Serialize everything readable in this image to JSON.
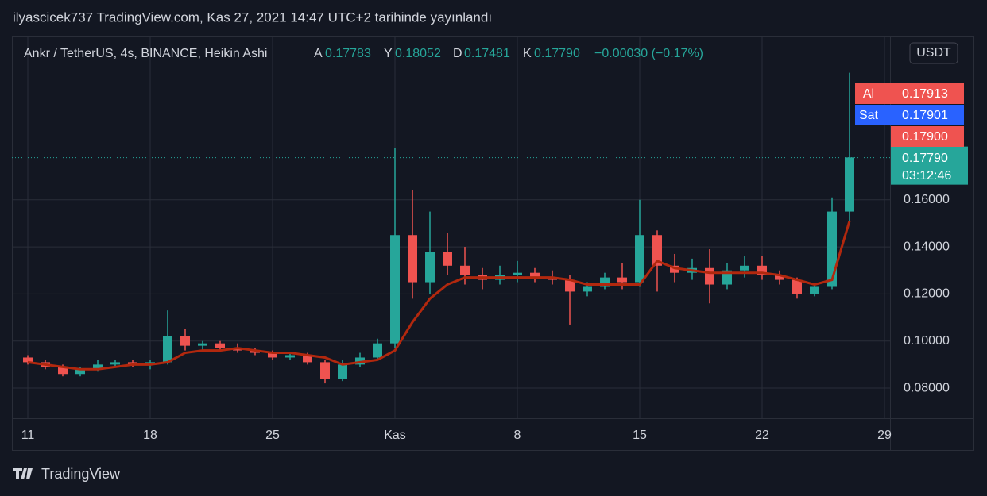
{
  "header": {
    "title": "ilyascicek737 TradingView.com, Kas 27, 2021 14:47 UTC+2 tarihinde yayınlandı"
  },
  "chart_data": {
    "type": "candlestick",
    "symbol": "Ankr / TetherUS, 4s, BINANCE, Heikin Ashi",
    "ohlc_legend": [
      {
        "label": "A",
        "value": "0.17783"
      },
      {
        "label": "Y",
        "value": "0.18052"
      },
      {
        "label": "D",
        "value": "0.17481"
      },
      {
        "label": "K",
        "value": "0.17790"
      }
    ],
    "change": "−0.00030 (−0.17%)",
    "currency": "USDT",
    "up_color": "#26a69a",
    "down_color": "#ef5350",
    "open": [
      0.093,
      0.091,
      0.089,
      0.086,
      0.088,
      0.09,
      0.091,
      0.09,
      0.091,
      0.102,
      0.098,
      0.099,
      0.097,
      0.096,
      0.095,
      0.093,
      0.094,
      0.091,
      0.084,
      0.09,
      0.093,
      0.099,
      0.145,
      0.125,
      0.138,
      0.132,
      0.128,
      0.126,
      0.128,
      0.129,
      0.127,
      0.126,
      0.121,
      0.123,
      0.127,
      0.125,
      0.145,
      0.132,
      0.129,
      0.131,
      0.124,
      0.13,
      0.132,
      0.128,
      0.126,
      0.12,
      0.123,
      0.155
    ],
    "high": [
      0.094,
      0.092,
      0.09,
      0.089,
      0.092,
      0.092,
      0.092,
      0.092,
      0.113,
      0.105,
      0.1,
      0.1,
      0.099,
      0.097,
      0.096,
      0.095,
      0.095,
      0.092,
      0.092,
      0.095,
      0.101,
      0.182,
      0.164,
      0.155,
      0.146,
      0.14,
      0.131,
      0.132,
      0.134,
      0.131,
      0.13,
      0.128,
      0.125,
      0.129,
      0.133,
      0.16,
      0.147,
      0.137,
      0.135,
      0.139,
      0.133,
      0.136,
      0.136,
      0.13,
      0.127,
      0.124,
      0.161,
      0.214
    ],
    "low": [
      0.09,
      0.088,
      0.085,
      0.085,
      0.087,
      0.089,
      0.089,
      0.088,
      0.09,
      0.096,
      0.096,
      0.096,
      0.095,
      0.094,
      0.092,
      0.092,
      0.09,
      0.082,
      0.083,
      0.089,
      0.092,
      0.097,
      0.118,
      0.12,
      0.128,
      0.124,
      0.122,
      0.124,
      0.125,
      0.125,
      0.124,
      0.107,
      0.119,
      0.122,
      0.122,
      0.123,
      0.121,
      0.125,
      0.126,
      0.116,
      0.122,
      0.127,
      0.126,
      0.124,
      0.118,
      0.119,
      0.122,
      0.15
    ],
    "close": [
      0.091,
      0.089,
      0.086,
      0.088,
      0.09,
      0.091,
      0.09,
      0.091,
      0.102,
      0.098,
      0.099,
      0.097,
      0.096,
      0.095,
      0.093,
      0.094,
      0.091,
      0.084,
      0.09,
      0.093,
      0.099,
      0.145,
      0.125,
      0.138,
      0.132,
      0.128,
      0.126,
      0.128,
      0.129,
      0.127,
      0.126,
      0.121,
      0.123,
      0.127,
      0.125,
      0.145,
      0.132,
      0.129,
      0.131,
      0.124,
      0.13,
      0.132,
      0.128,
      0.126,
      0.12,
      0.123,
      0.155,
      0.178
    ],
    "ma": {
      "color": "#b2280e",
      "values": [
        0.091,
        0.09,
        0.089,
        0.088,
        0.088,
        0.089,
        0.09,
        0.09,
        0.091,
        0.095,
        0.096,
        0.096,
        0.097,
        0.096,
        0.095,
        0.095,
        0.094,
        0.093,
        0.09,
        0.091,
        0.092,
        0.096,
        0.108,
        0.118,
        0.124,
        0.127,
        0.127,
        0.127,
        0.127,
        0.127,
        0.127,
        0.126,
        0.124,
        0.124,
        0.124,
        0.124,
        0.134,
        0.131,
        0.13,
        0.129,
        0.129,
        0.129,
        0.129,
        0.128,
        0.126,
        0.124,
        0.126,
        0.151
      ]
    },
    "xtick_labels": [
      "11",
      "18",
      "25",
      "Kas",
      "8",
      "15",
      "22",
      "29"
    ],
    "ylim": [
      0.0672,
      0.2297
    ],
    "yticks": [
      {
        "value": 0.08,
        "label": "0.08000"
      },
      {
        "value": 0.1,
        "label": "0.10000"
      },
      {
        "value": 0.12,
        "label": "0.12000"
      },
      {
        "value": 0.14,
        "label": "0.14000"
      },
      {
        "value": 0.16,
        "label": "0.16000"
      }
    ],
    "grid": true,
    "last_price": {
      "value": 0.1779,
      "label": "0.17790",
      "countdown": "03:12:46",
      "color": "#26a69a"
    },
    "price_tags": [
      {
        "name": "Al",
        "label": "0.17913",
        "color": "#ef5350"
      },
      {
        "name": "Sat",
        "label": "0.17901",
        "color": "#2962ff"
      },
      {
        "label": "0.17900",
        "color": "#ef5350"
      }
    ]
  },
  "footer": {
    "brand": "TradingView"
  }
}
